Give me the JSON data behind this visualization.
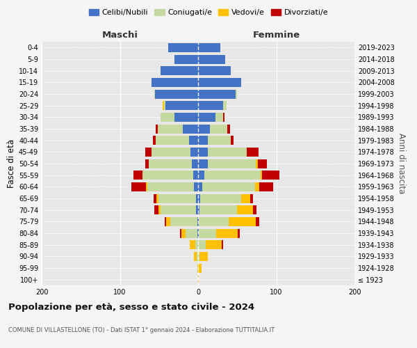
{
  "age_groups": [
    "100+",
    "95-99",
    "90-94",
    "85-89",
    "80-84",
    "75-79",
    "70-74",
    "65-69",
    "60-64",
    "55-59",
    "50-54",
    "45-49",
    "40-44",
    "35-39",
    "30-34",
    "25-29",
    "20-24",
    "15-19",
    "10-14",
    "5-9",
    "0-4"
  ],
  "birth_years": [
    "≤ 1923",
    "1924-1928",
    "1929-1933",
    "1934-1938",
    "1939-1943",
    "1944-1948",
    "1949-1953",
    "1954-1958",
    "1959-1963",
    "1964-1968",
    "1969-1973",
    "1974-1978",
    "1979-1983",
    "1984-1988",
    "1989-1993",
    "1994-1998",
    "1999-2003",
    "2004-2008",
    "2009-2013",
    "2014-2018",
    "2019-2023"
  ],
  "colors": {
    "celibi": "#4472c4",
    "coniugati": "#c5d9a0",
    "vedovi": "#ffc000",
    "divorziati": "#c00000"
  },
  "maschi": {
    "celibi": [
      0,
      0,
      0,
      0,
      1,
      1,
      3,
      3,
      5,
      6,
      8,
      10,
      12,
      20,
      30,
      42,
      55,
      60,
      48,
      30,
      38
    ],
    "coniugati": [
      0,
      0,
      2,
      4,
      15,
      35,
      45,
      48,
      60,
      65,
      55,
      50,
      42,
      32,
      18,
      2,
      1,
      0,
      0,
      0,
      0
    ],
    "vedovi": [
      0,
      1,
      3,
      7,
      5,
      5,
      3,
      2,
      2,
      0,
      0,
      0,
      0,
      0,
      0,
      1,
      0,
      0,
      0,
      0,
      0
    ],
    "divorziati": [
      0,
      0,
      0,
      0,
      2,
      2,
      5,
      4,
      18,
      12,
      5,
      8,
      4,
      2,
      0,
      0,
      0,
      0,
      0,
      0,
      0
    ]
  },
  "femmine": {
    "celibi": [
      0,
      0,
      0,
      0,
      1,
      1,
      2,
      3,
      5,
      8,
      12,
      12,
      12,
      15,
      22,
      32,
      48,
      55,
      42,
      35,
      28
    ],
    "coniugati": [
      0,
      1,
      2,
      10,
      22,
      38,
      48,
      52,
      68,
      72,
      62,
      50,
      30,
      22,
      10,
      4,
      2,
      0,
      0,
      0,
      0
    ],
    "vedovi": [
      1,
      3,
      10,
      20,
      28,
      35,
      20,
      12,
      5,
      2,
      2,
      0,
      0,
      0,
      0,
      0,
      0,
      0,
      0,
      0,
      0
    ],
    "divorziati": [
      0,
      0,
      0,
      2,
      2,
      4,
      5,
      3,
      18,
      22,
      12,
      15,
      3,
      4,
      2,
      0,
      0,
      0,
      0,
      0,
      0
    ]
  },
  "xlim": 200,
  "title": "Popolazione per età, sesso e stato civile - 2024",
  "subtitle": "COMUNE DI VILLASTELLONE (TO) - Dati ISTAT 1° gennaio 2024 - Elaborazione TUTTITALIA.IT",
  "ylabel": "Fasce di età",
  "right_ylabel": "Anni di nascita",
  "maschi_label": "Maschi",
  "femmine_label": "Femmine",
  "legend_labels": [
    "Celibi/Nubili",
    "Coniugati/e",
    "Vedovi/e",
    "Divorziati/e"
  ],
  "fig_bg": "#f5f5f5",
  "plot_bg": "#e8e8e8"
}
